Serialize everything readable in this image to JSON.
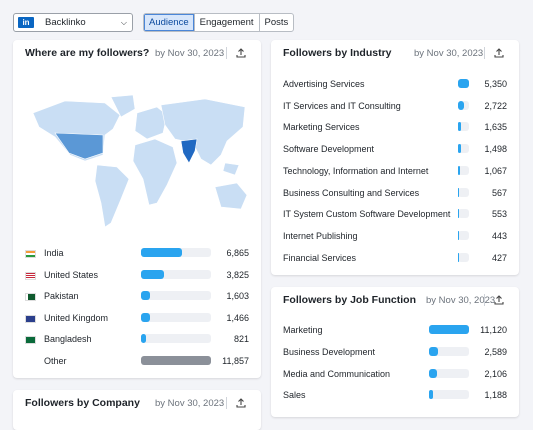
{
  "header": {
    "account": "Backlinko",
    "tabs": [
      "Audience",
      "Engagement",
      "Posts"
    ],
    "selected_tab": 0
  },
  "cards": [
    {
      "title": "Where are my followers?",
      "date": "by Nov 30, 2023",
      "rows": [
        {
          "name": "India",
          "followers": {
            "value": 6865,
            "label": "6,865"
          }
        },
        {
          "name": "United States",
          "followers": {
            "value": 3825,
            "label": "3,825"
          }
        },
        {
          "name": "Pakistan",
          "followers": {
            "value": 1603,
            "label": "1,603"
          }
        },
        {
          "name": "United Kingdom",
          "followers": {
            "value": 1466,
            "label": "1,466"
          }
        },
        {
          "name": "Bangladesh",
          "followers": {
            "value": 821,
            "label": "821"
          }
        },
        {
          "name": "Other",
          "followers": {
            "value": 11857,
            "label": "11,857"
          },
          "color": "#8b9099"
        }
      ]
    },
    {
      "title": "Followers by Industry",
      "date": "by Nov 30, 2023",
      "rows": [
        {
          "name": "Advertising Services",
          "followers": {
            "value": 5350,
            "label": "5,350"
          }
        },
        {
          "name": "IT Services and IT Consulting",
          "followers": {
            "value": 2722,
            "label": "2,722"
          }
        },
        {
          "name": "Marketing Services",
          "followers": {
            "value": 1635,
            "label": "1,635"
          }
        },
        {
          "name": "Software Development",
          "followers": {
            "value": 1498,
            "label": "1,498"
          }
        },
        {
          "name": "Technology, Information and Internet",
          "followers": {
            "value": 1067,
            "label": "1,067"
          }
        },
        {
          "name": "Business Consulting and Services",
          "followers": {
            "value": 567,
            "label": "567"
          }
        },
        {
          "name": "IT System Custom Software Development",
          "followers": {
            "value": 553,
            "label": "553"
          }
        },
        {
          "name": "Internet Publishing",
          "followers": {
            "value": 443,
            "label": "443"
          }
        },
        {
          "name": "Financial Services",
          "followers": {
            "value": 427,
            "label": "427"
          }
        }
      ]
    },
    {
      "title": "Followers by Job Function",
      "date": "by Nov 30, 2023",
      "rows": [
        {
          "name": "Marketing",
          "followers": {
            "value": 11120,
            "label": "11,120"
          }
        },
        {
          "name": "Business Development",
          "followers": {
            "value": 2589,
            "label": "2,589"
          }
        },
        {
          "name": "Media and Communication",
          "followers": {
            "value": 2106,
            "label": "2,106"
          }
        },
        {
          "name": "Sales",
          "followers": {
            "value": 1188,
            "label": "1,188"
          }
        }
      ]
    },
    {
      "title": "Followers by Company",
      "date": "by Nov 30, 2023",
      "rows": []
    }
  ]
}
